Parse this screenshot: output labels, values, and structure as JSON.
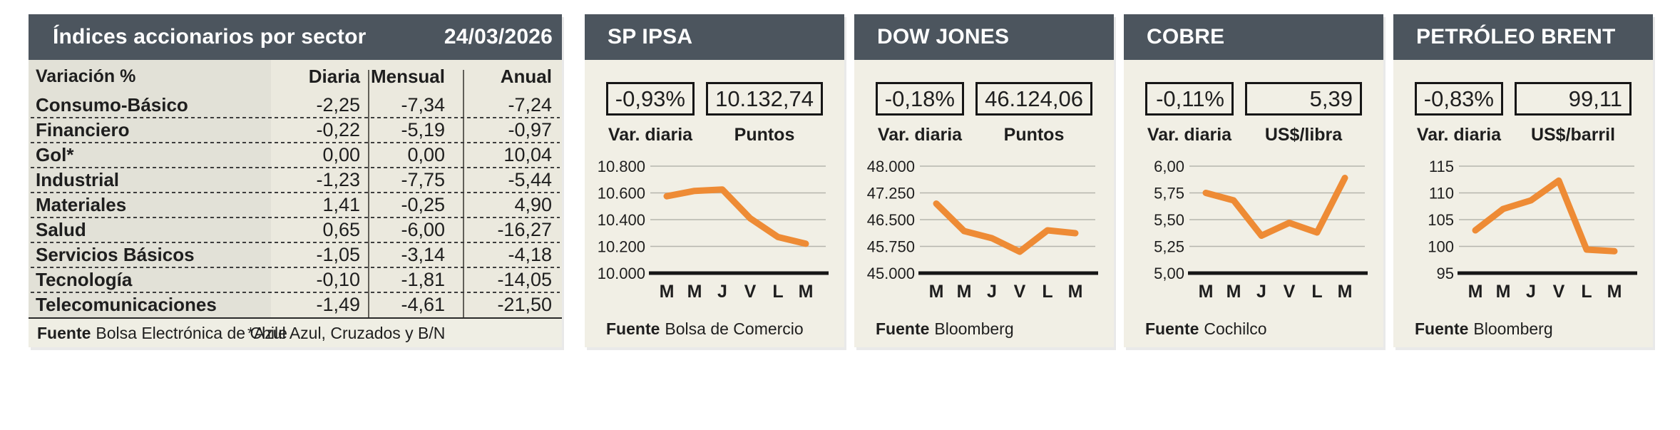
{
  "colors": {
    "header_bar": "#4c555e",
    "accent_line": "#ee8b35",
    "panel_bg": "#f1efe5",
    "table_label_col": "#e2e1d7",
    "table_value_col": "#ebe9de"
  },
  "table": {
    "title": "Índices accionarios por sector",
    "date": "24/03/2026",
    "col_headers": {
      "variation": "Variación %",
      "daily": "Diaria",
      "monthly": "Mensual",
      "annual": "Anual"
    },
    "rows": [
      {
        "label": "Consumo-Básico",
        "daily": "-2,25",
        "monthly": "-7,34",
        "annual": "-7,24"
      },
      {
        "label": "Financiero",
        "daily": "-0,22",
        "monthly": "-5,19",
        "annual": "-0,97"
      },
      {
        "label": "Gol*",
        "daily": "0,00",
        "monthly": "0,00",
        "annual": "10,04"
      },
      {
        "label": "Industrial",
        "daily": "-1,23",
        "monthly": "-7,75",
        "annual": "-5,44"
      },
      {
        "label": "Materiales",
        "daily": "1,41",
        "monthly": "-0,25",
        "annual": "4,90"
      },
      {
        "label": "Salud",
        "daily": "0,65",
        "monthly": "-6,00",
        "annual": "-16,27"
      },
      {
        "label": "Servicios Básicos",
        "daily": "-1,05",
        "monthly": "-3,14",
        "annual": "-4,18"
      },
      {
        "label": "Tecnología",
        "daily": "-0,10",
        "monthly": "-1,81",
        "annual": "-14,05"
      },
      {
        "label": "Telecomunicaciones",
        "daily": "-1,49",
        "monthly": "-4,61",
        "annual": "-21,50"
      }
    ],
    "source_label": "Fuente",
    "source": "Bolsa Electrónica de Chile",
    "footnote": "*Azul Azul, Cruzados y B/N"
  },
  "panels": [
    {
      "title": "SP IPSA",
      "var_value": "-0,93%",
      "var_label": "Var. diaria",
      "value": "10.132,74",
      "value_label": "Puntos",
      "source_label": "Fuente",
      "source": "Bolsa de Comercio"
    },
    {
      "title": "DOW JONES",
      "var_value": "-0,18%",
      "var_label": "Var. diaria",
      "value": "46.124,06",
      "value_label": "Puntos",
      "source_label": "Fuente",
      "source": "Bloomberg"
    },
    {
      "title": "COBRE",
      "var_value": "-0,11%",
      "var_label": "Var. diaria",
      "value": "5,39",
      "value_label": "US$/libra",
      "source_label": "Fuente",
      "source": "Cochilco"
    },
    {
      "title": "PETRÓLEO BRENT",
      "var_value": "-0,83%",
      "var_label": "Var. diaria",
      "value": "99,11",
      "value_label": "US$/barril",
      "source_label": "Fuente",
      "source": "Bloomberg"
    }
  ],
  "chart_data": [
    {
      "type": "table",
      "title": "Índices accionarios por sector",
      "date": "24/03/2026",
      "columns": [
        "Variación %",
        "Diaria",
        "Mensual",
        "Anual"
      ],
      "rows": [
        [
          "Consumo-Básico",
          -2.25,
          -7.34,
          -7.24
        ],
        [
          "Financiero",
          -0.22,
          -5.19,
          -0.97
        ],
        [
          "Gol*",
          0.0,
          0.0,
          10.04
        ],
        [
          "Industrial",
          -1.23,
          -7.75,
          -5.44
        ],
        [
          "Materiales",
          1.41,
          -0.25,
          4.9
        ],
        [
          "Salud",
          0.65,
          -6.0,
          -16.27
        ],
        [
          "Servicios Básicos",
          -1.05,
          -3.14,
          -4.18
        ],
        [
          "Tecnología",
          -0.1,
          -1.81,
          -14.05
        ],
        [
          "Telecomunicaciones",
          -1.49,
          -4.61,
          -21.5
        ]
      ],
      "source": "Fuente Bolsa Electrónica de Chile",
      "note": "*Azul Azul, Cruzados y B/N"
    },
    {
      "type": "line",
      "title": "SP IPSA",
      "ylabel": "Puntos",
      "x": [
        "M",
        "M",
        "J",
        "V",
        "L",
        "M"
      ],
      "values": [
        10575,
        10615,
        10625,
        10410,
        10270,
        10220
      ],
      "ylim": [
        10000,
        10800
      ],
      "yticks": [
        10800,
        10600,
        10400,
        10200,
        10000
      ],
      "ytick_labels": [
        "10.800",
        "10.600",
        "10.400",
        "10.200",
        "10.000"
      ],
      "current_value": 10132.74,
      "daily_change_pct": -0.93,
      "grid": true,
      "legend": false
    },
    {
      "type": "line",
      "title": "DOW JONES",
      "ylabel": "Puntos",
      "x": [
        "M",
        "M",
        "J",
        "V",
        "L",
        "M"
      ],
      "values": [
        46950,
        46180,
        45980,
        45600,
        46200,
        46120
      ],
      "ylim": [
        45000,
        48000
      ],
      "yticks": [
        48000,
        47250,
        46500,
        45750,
        45000
      ],
      "ytick_labels": [
        "48.000",
        "47.250",
        "46.500",
        "45.750",
        "45.000"
      ],
      "current_value": 46124.06,
      "daily_change_pct": -0.18,
      "grid": true,
      "legend": false
    },
    {
      "type": "line",
      "title": "COBRE",
      "ylabel": "US$/libra",
      "x": [
        "M",
        "M",
        "J",
        "V",
        "L",
        "M"
      ],
      "values": [
        5.75,
        5.68,
        5.35,
        5.47,
        5.38,
        5.89
      ],
      "ylim": [
        5.0,
        6.0
      ],
      "yticks": [
        6.0,
        5.75,
        5.5,
        5.25,
        5.0
      ],
      "ytick_labels": [
        "6,00",
        "5,75",
        "5,50",
        "5,25",
        "5,00"
      ],
      "current_value": 5.39,
      "daily_change_pct": -0.11,
      "grid": true,
      "legend": false
    },
    {
      "type": "line",
      "title": "PETRÓLEO BRENT",
      "ylabel": "US$/barril",
      "x": [
        "M",
        "M",
        "J",
        "V",
        "L",
        "M"
      ],
      "values": [
        103.0,
        107.0,
        108.6,
        112.3,
        99.4,
        99.1
      ],
      "ylim": [
        95,
        115
      ],
      "yticks": [
        115,
        110,
        105,
        100,
        95
      ],
      "ytick_labels": [
        "115",
        "110",
        "105",
        "100",
        "95"
      ],
      "current_value": 99.11,
      "daily_change_pct": -0.83,
      "grid": true,
      "legend": false
    }
  ]
}
